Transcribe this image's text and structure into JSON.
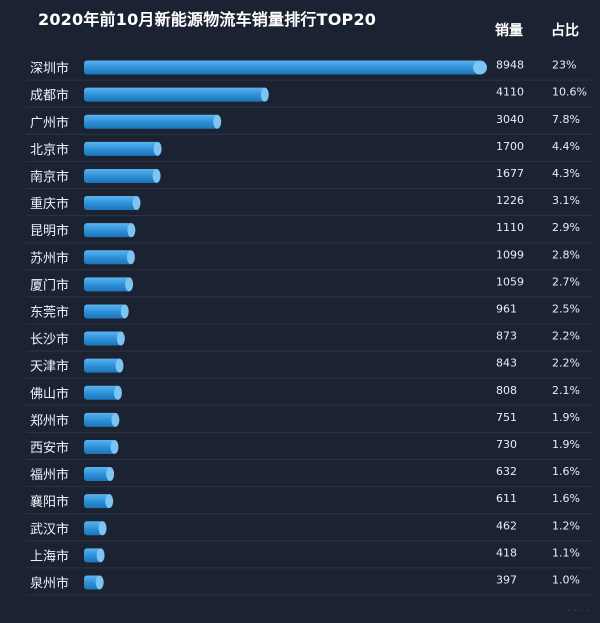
{
  "chart_data": {
    "type": "bar",
    "orientation": "horizontal",
    "title": "2020年前10月新能源物流车销量排行TOP20",
    "columns": {
      "sales": "销量",
      "share": "占比"
    },
    "categories": [
      "深圳市",
      "成都市",
      "广州市",
      "北京市",
      "南京市",
      "重庆市",
      "昆明市",
      "苏州市",
      "厦门市",
      "东莞市",
      "长沙市",
      "天津市",
      "佛山市",
      "郑州市",
      "西安市",
      "福州市",
      "襄阳市",
      "武汉市",
      "上海市",
      "泉州市"
    ],
    "values": [
      8948,
      4110,
      3040,
      1700,
      1677,
      1226,
      1110,
      1099,
      1059,
      961,
      873,
      843,
      808,
      751,
      730,
      632,
      611,
      462,
      418,
      397
    ],
    "share_labels": [
      "23%",
      "10.6%",
      "7.8%",
      "4.4%",
      "4.3%",
      "3.1%",
      "2.9%",
      "2.8%",
      "2.7%",
      "2.5%",
      "2.2%",
      "2.2%",
      "2.1%",
      "1.9%",
      "1.9%",
      "1.6%",
      "1.6%",
      "1.2%",
      "1.1%",
      "1.0%"
    ],
    "xlim": [
      0,
      8948
    ],
    "colors": {
      "bar": "#2b8fd6",
      "bar_highlight": "#5bb4ef",
      "bar_end": "#7cc4f2",
      "background": "#1b2232",
      "row_line": "#2a3446"
    }
  }
}
